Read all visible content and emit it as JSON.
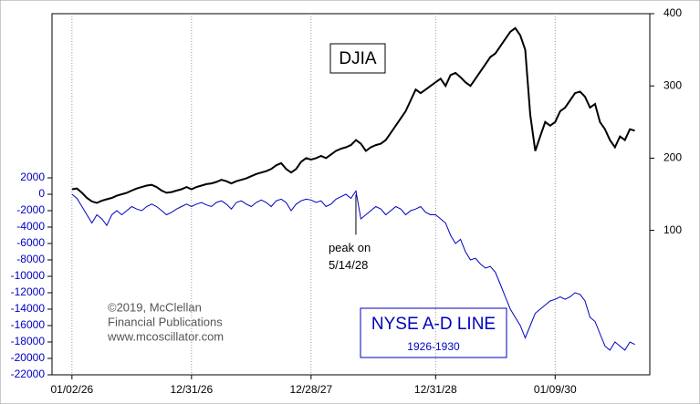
{
  "chart_data": {
    "type": "line",
    "xlim": [
      -4,
      116
    ],
    "xticks": [
      {
        "value": 0,
        "label": "01/02/26"
      },
      {
        "value": 24,
        "label": "12/31/26"
      },
      {
        "value": 48,
        "label": "12/28/27"
      },
      {
        "value": 73,
        "label": "12/31/28"
      },
      {
        "value": 97,
        "label": "01/09/30"
      }
    ],
    "ylim": [
      -22000,
      22000
    ],
    "yticks": [
      -22000,
      -20000,
      -18000,
      -16000,
      -14000,
      -12000,
      -10000,
      -8000,
      -6000,
      -4000,
      -2000,
      0,
      2000
    ],
    "y2lim": [
      -100,
      400
    ],
    "y2ticks": [
      100,
      200,
      300,
      400
    ],
    "grid": true,
    "series": [
      {
        "name": "DJIA",
        "color": "#000000",
        "axis": "y2",
        "values": [
          157,
          158,
          152,
          145,
          140,
          138,
          141,
          143,
          145,
          148,
          150,
          152,
          155,
          158,
          160,
          162,
          163,
          160,
          155,
          152,
          153,
          155,
          157,
          160,
          157,
          160,
          162,
          164,
          165,
          167,
          170,
          168,
          165,
          168,
          170,
          172,
          175,
          178,
          180,
          182,
          185,
          190,
          193,
          185,
          180,
          185,
          195,
          200,
          198,
          200,
          203,
          200,
          205,
          210,
          213,
          215,
          218,
          225,
          220,
          210,
          215,
          218,
          220,
          225,
          235,
          245,
          255,
          265,
          280,
          295,
          290,
          295,
          300,
          305,
          310,
          300,
          315,
          318,
          312,
          305,
          300,
          310,
          320,
          330,
          340,
          345,
          355,
          365,
          375,
          380,
          370,
          350,
          260,
          210,
          230,
          250,
          245,
          250,
          265,
          270,
          280,
          290,
          292,
          285,
          270,
          275,
          250,
          240,
          225,
          215,
          230,
          225,
          240,
          238
        ]
      },
      {
        "name": "NYSE A-D LINE",
        "color": "#0000c0",
        "values": [
          0,
          -500,
          -1500,
          -2500,
          -3500,
          -2500,
          -3000,
          -3800,
          -2500,
          -2000,
          -2500,
          -2000,
          -1500,
          -1800,
          -2000,
          -1500,
          -1200,
          -1500,
          -2000,
          -2500,
          -2200,
          -1800,
          -1500,
          -1200,
          -1500,
          -1200,
          -1000,
          -1300,
          -1500,
          -1000,
          -800,
          -1200,
          -1800,
          -1000,
          -800,
          -1200,
          -1500,
          -1000,
          -700,
          -1000,
          -1500,
          -800,
          -600,
          -1000,
          -2000,
          -1200,
          -800,
          -600,
          -700,
          -1000,
          -800,
          -1500,
          -1200,
          -600,
          -300,
          0,
          -500,
          400,
          -3000,
          -2500,
          -2000,
          -1500,
          -1800,
          -2500,
          -2000,
          -1500,
          -1800,
          -2500,
          -2000,
          -1800,
          -1500,
          -2200,
          -2500,
          -2500,
          -3000,
          -3500,
          -5000,
          -6000,
          -5500,
          -7000,
          -8000,
          -7800,
          -8500,
          -9000,
          -8800,
          -9500,
          -11000,
          -12500,
          -14000,
          -15000,
          -16000,
          -17500,
          -16000,
          -14500,
          -14000,
          -13500,
          -13000,
          -12800,
          -12500,
          -12800,
          -12500,
          -12000,
          -12200,
          -13000,
          -15000,
          -15500,
          -17000,
          -18500,
          -19000,
          -18000,
          -18500,
          -19000,
          -18000,
          -18300
        ]
      }
    ],
    "legend_subtitle": "1926-1930",
    "annotation": [
      "peak on",
      "5/14/28"
    ],
    "annotation_index": 57,
    "credits": [
      "©2019, McClellan",
      "Financial Publications",
      "www.mcoscillator.com"
    ]
  }
}
